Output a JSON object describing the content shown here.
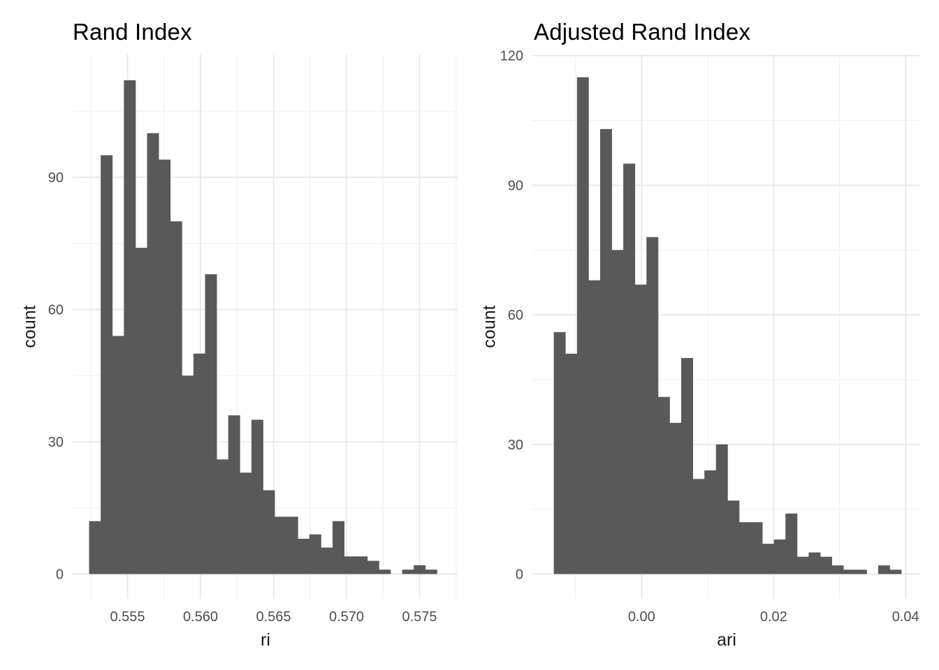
{
  "page": {
    "background_color": "#ffffff",
    "figure_type": "side-by-side ggplot-style histograms"
  },
  "chart_data": [
    {
      "type": "bar",
      "subtype": "histogram",
      "title": "Rand Index",
      "xlabel": "ri",
      "ylabel": "count",
      "bar_color": "#595959",
      "major_grid_color": "#e6e6e6",
      "minor_grid_color": "#f0f0f0",
      "tick_label_color": "#4d4d4d",
      "grid": true,
      "legend_position": "none",
      "bin_start": 0.55237,
      "bin_width": 0.000794,
      "counts": [
        12,
        95,
        54,
        112,
        74,
        100,
        94,
        80,
        45,
        50,
        68,
        26,
        36,
        23,
        35,
        19,
        13,
        13,
        8,
        9,
        6,
        12,
        4,
        4,
        3,
        1,
        0,
        1,
        2,
        1
      ],
      "total_observations": 1000,
      "x_ticks": [
        {
          "label": "0.555",
          "value": 0.555
        },
        {
          "label": "0.560",
          "value": 0.56
        },
        {
          "label": "0.565",
          "value": 0.565
        },
        {
          "label": "0.570",
          "value": 0.57
        },
        {
          "label": "0.575",
          "value": 0.575
        }
      ],
      "y_ticks": [
        {
          "label": "0",
          "value": 0
        },
        {
          "label": "30",
          "value": 30
        },
        {
          "label": "60",
          "value": 60
        },
        {
          "label": "90",
          "value": 90
        }
      ],
      "xlim": [
        0.55124,
        0.57761
      ],
      "ylim": [
        -5.6,
        117.9
      ]
    },
    {
      "type": "bar",
      "subtype": "histogram",
      "title": "Adjusted Rand Index",
      "xlabel": "ari",
      "ylabel": "count",
      "bar_color": "#595959",
      "major_grid_color": "#e6e6e6",
      "minor_grid_color": "#f0f0f0",
      "tick_label_color": "#4d4d4d",
      "grid": true,
      "legend_position": "none",
      "bin_start": -0.0133,
      "bin_width": 0.001755,
      "counts": [
        56,
        51,
        115,
        68,
        103,
        75,
        95,
        67,
        78,
        41,
        35,
        50,
        22,
        24,
        30,
        17,
        12,
        12,
        7,
        8,
        14,
        4,
        5,
        4,
        2,
        1,
        1,
        0,
        2,
        1
      ],
      "total_observations": 1000,
      "x_ticks": [
        {
          "label": "0.00",
          "value": 0.0
        },
        {
          "label": "0.02",
          "value": 0.02
        },
        {
          "label": "0.04",
          "value": 0.04
        }
      ],
      "y_ticks": [
        {
          "label": "0",
          "value": 0
        },
        {
          "label": "30",
          "value": 30
        },
        {
          "label": "60",
          "value": 60
        },
        {
          "label": "90",
          "value": 90
        },
        {
          "label": "120",
          "value": 120
        }
      ],
      "xlim": [
        -0.016545,
        0.042096
      ],
      "ylim": [
        -5.73,
        120.27
      ]
    }
  ]
}
